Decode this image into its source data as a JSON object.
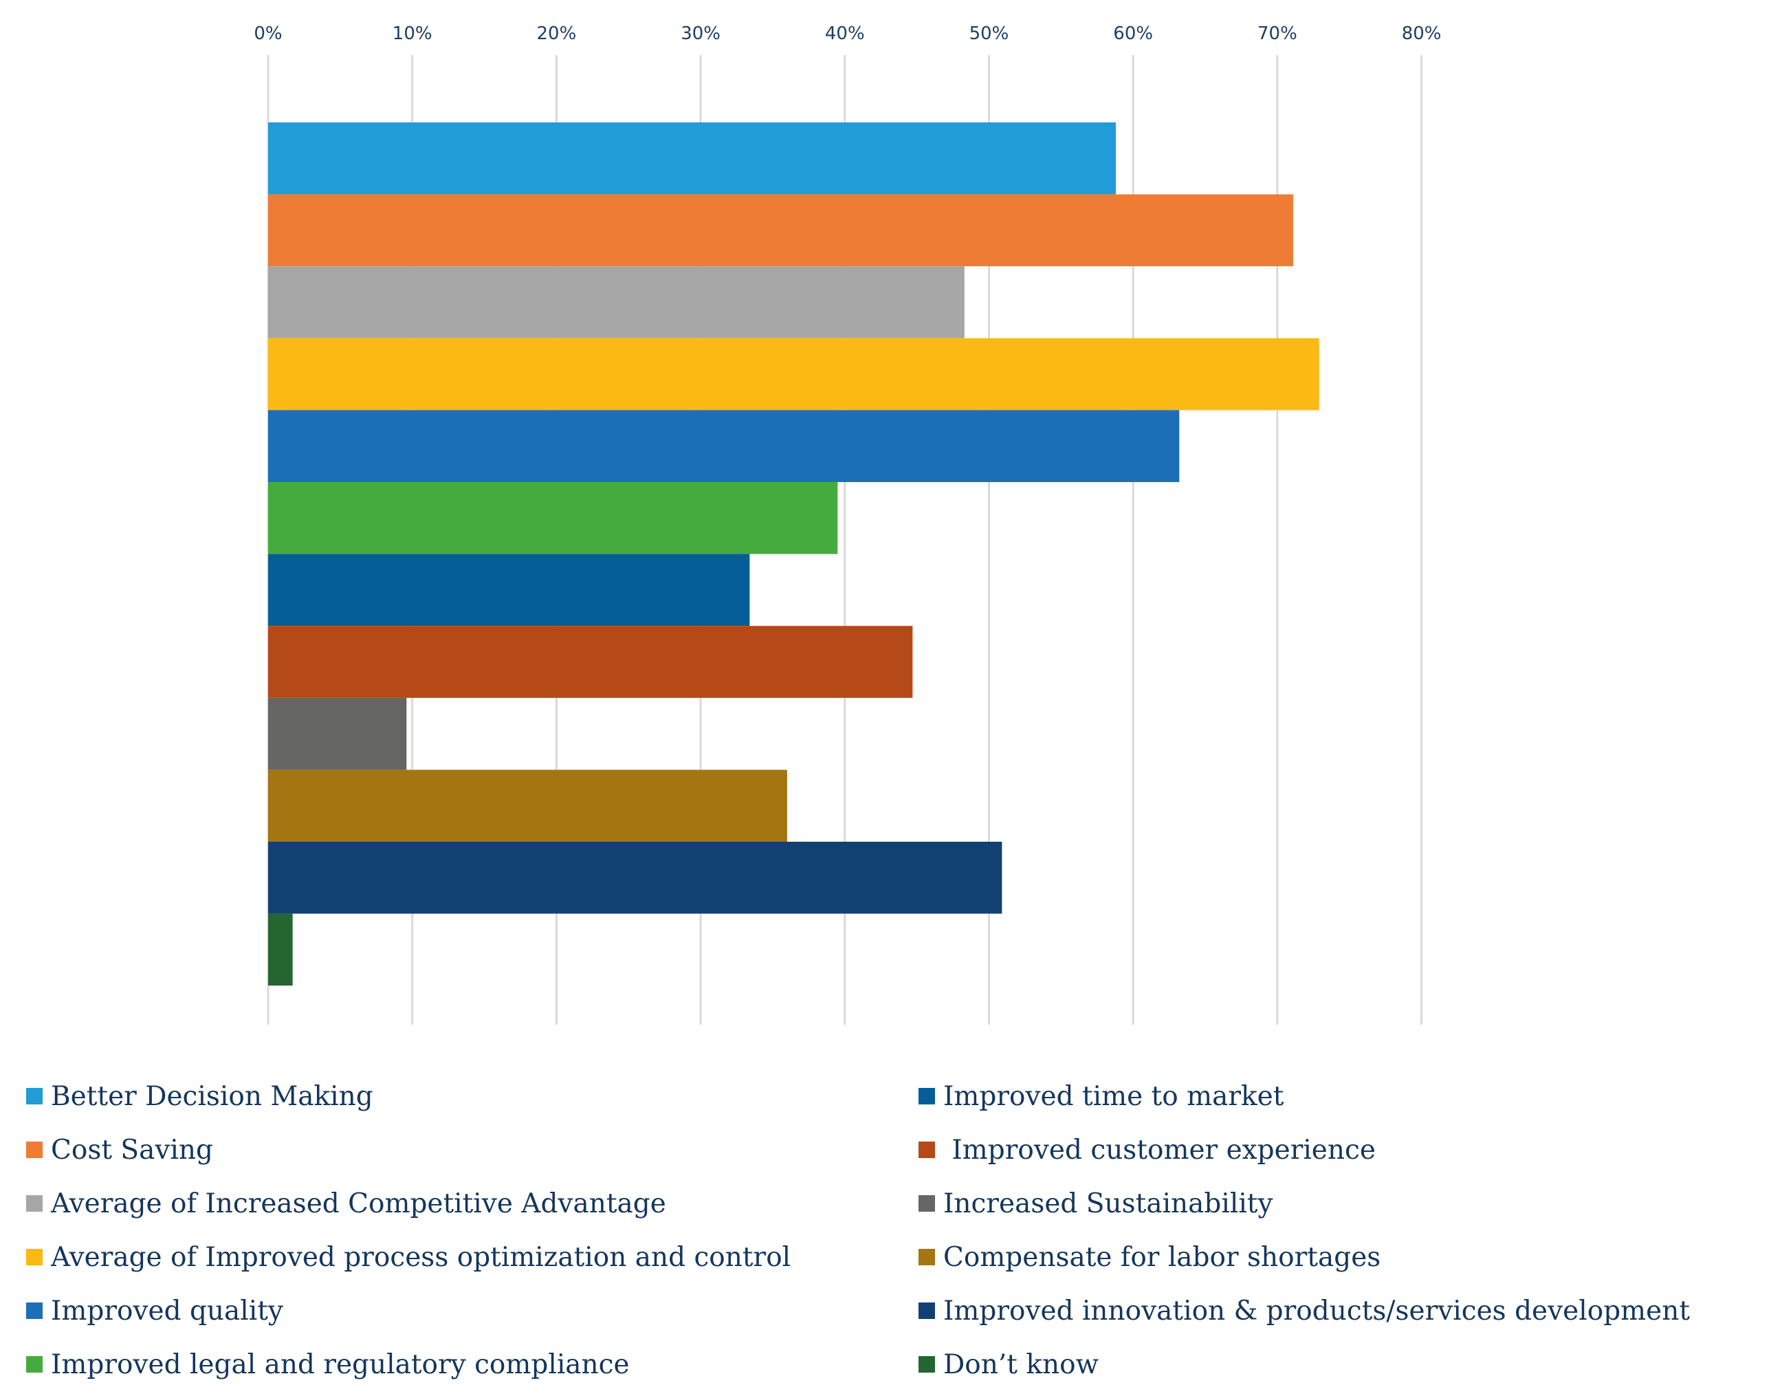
{
  "chart_data": {
    "type": "bar",
    "orientation": "horizontal",
    "title": "",
    "xlabel": "",
    "ylabel": "",
    "xlim": [
      0,
      0.8
    ],
    "x_ticks": [
      "0%",
      "10%",
      "20%",
      "30%",
      "40%",
      "50%",
      "60%",
      "70%",
      "80%"
    ],
    "x_axis_position": "top",
    "grid": true,
    "legend_position": "bottom",
    "series": [
      {
        "name": "Better Decision Making",
        "value": 0.588,
        "color": "#219cd7"
      },
      {
        "name": "Cost Saving",
        "value": 0.711,
        "color": "#ef7c35"
      },
      {
        "name": "Average of Increased Competitive Advantage",
        "value": 0.483,
        "color": "#a6a6a6"
      },
      {
        "name": "Average of Improved process optimization and control",
        "value": 0.729,
        "color": "#fab913"
      },
      {
        "name": "Improved quality",
        "value": 0.632,
        "color": "#1b6fb7"
      },
      {
        "name": "Improved legal and regulatory compliance",
        "value": 0.395,
        "color": "#46ab3f"
      },
      {
        "name": "Improved time to market",
        "value": 0.334,
        "color": "#055e98"
      },
      {
        "name": " Improved customer experience",
        "value": 0.447,
        "color": "#b54918"
      },
      {
        "name": "Increased Sustainability",
        "value": 0.096,
        "color": "#666664"
      },
      {
        "name": "Compensate for labor shortages",
        "value": 0.36,
        "color": "#a57512"
      },
      {
        "name": "Improved innovation & products/services development",
        "value": 0.509,
        "color": "#114173"
      },
      {
        "name": "Don’t know",
        "value": 0.017,
        "color": "#256630"
      }
    ]
  }
}
